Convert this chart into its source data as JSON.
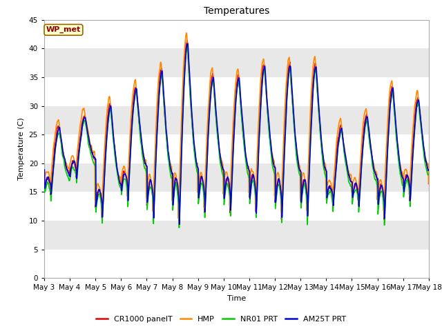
{
  "title": "Temperatures",
  "ylabel": "Temperature (C)",
  "xlabel": "Time",
  "annotation": "WP_met",
  "ylim": [
    0,
    45
  ],
  "yticks": [
    0,
    5,
    10,
    15,
    20,
    25,
    30,
    35,
    40,
    45
  ],
  "fig_bg_color": "#ffffff",
  "plot_bg_color": "#e8e8e8",
  "grid_color": "#ffffff",
  "series_colors": {
    "CR1000 panelT": "#dd0000",
    "HMP": "#ff8800",
    "NR01 PRT": "#00cc00",
    "AM25T PRT": "#0000dd"
  },
  "x_tick_labels": [
    "May 3",
    "May 4",
    "May 5",
    "May 6",
    "May 7",
    "May 8",
    "May 9",
    "May 10",
    "May 11",
    "May 12",
    "May 13",
    "May 14",
    "May 15",
    "May 16",
    "May 17",
    "May 18"
  ],
  "n_days": 15,
  "points_per_day": 96,
  "peak_temps": [
    26,
    28,
    30,
    33,
    36,
    41,
    35,
    35,
    37,
    37,
    37,
    26,
    28,
    33,
    31,
    31
  ],
  "min_temps": [
    14,
    17,
    10,
    13,
    10,
    9,
    11,
    11,
    11,
    10,
    10,
    12,
    12,
    10,
    13,
    10
  ]
}
